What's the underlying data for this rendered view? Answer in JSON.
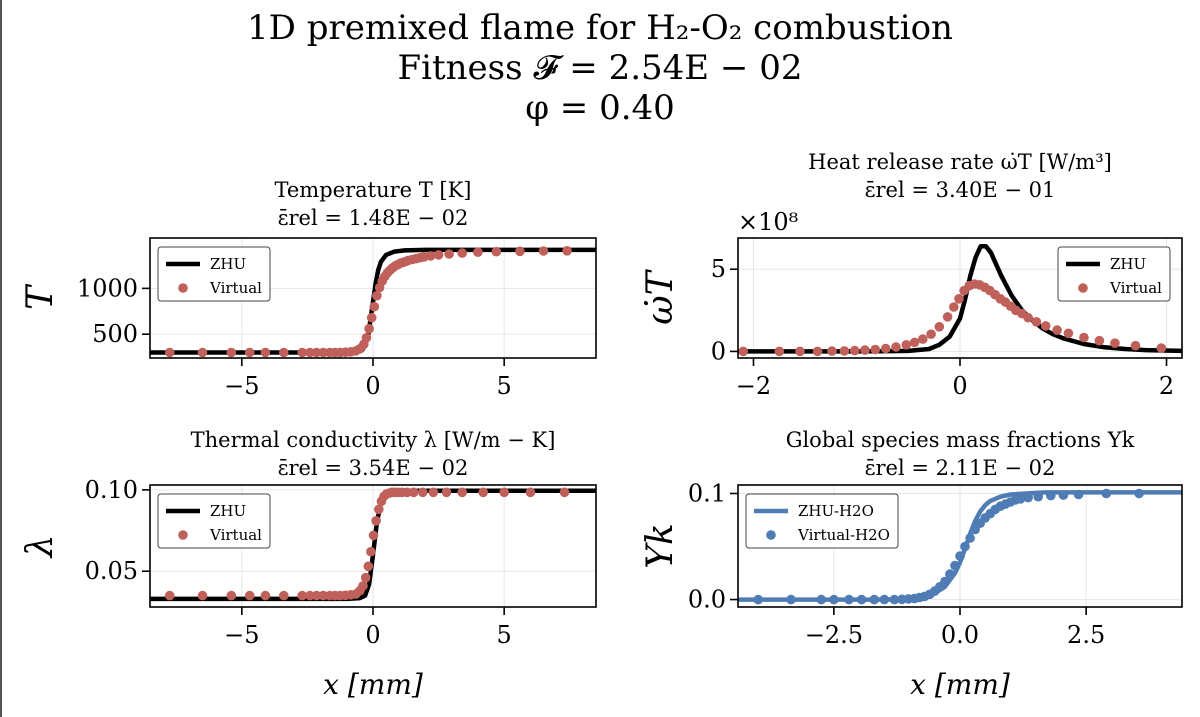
{
  "figure": {
    "suptitle_lines": [
      "1D premixed flame for H₂-O₂ combustion",
      "Fitness 𝓕 = 2.54E − 02",
      "φ = 0.40"
    ]
  },
  "chart_data": [
    {
      "type": "line",
      "title": [
        "Temperature T [K]",
        "ε̄rel = 1.48E − 02"
      ],
      "xlabel": "",
      "ylabel": "T",
      "xlim": [
        -8.5,
        8.5
      ],
      "ylim": [
        240,
        1550
      ],
      "xticks": [
        -5,
        0,
        5
      ],
      "xtick_labels": [
        "−5",
        "0",
        "5"
      ],
      "yticks": [
        500,
        1000
      ],
      "ytick_labels": [
        "500",
        "1000"
      ],
      "grid": true,
      "legend_position": "top-left",
      "series": [
        {
          "name": "ZHU",
          "style": "line",
          "color": "#000000",
          "x": [
            -8.5,
            -1.0,
            -0.6,
            -0.4,
            -0.2,
            0.0,
            0.1,
            0.2,
            0.3,
            0.5,
            0.8,
            1.2,
            2.0,
            4.0,
            8.5
          ],
          "y": [
            300,
            300,
            305,
            330,
            460,
            850,
            1050,
            1200,
            1290,
            1365,
            1400,
            1415,
            1420,
            1420,
            1420
          ]
        },
        {
          "name": "Virtual",
          "style": "markers",
          "color": "#c0605a",
          "x": [
            -7.75,
            -6.5,
            -5.4,
            -4.7,
            -4.1,
            -3.4,
            -2.7,
            -2.4,
            -2.15,
            -1.9,
            -1.65,
            -1.45,
            -1.25,
            -1.05,
            -0.85,
            -0.65,
            -0.5,
            -0.35,
            -0.25,
            -0.15,
            -0.05,
            0.05,
            0.15,
            0.25,
            0.35,
            0.45,
            0.55,
            0.65,
            0.75,
            0.85,
            0.95,
            1.05,
            1.15,
            1.25,
            1.35,
            1.5,
            1.65,
            1.8,
            1.95,
            2.2,
            2.5,
            2.9,
            3.4,
            4.0,
            4.7,
            5.6,
            6.5,
            7.4
          ],
          "y": [
            300,
            300,
            300,
            300,
            300,
            300,
            300,
            300,
            300,
            300,
            300,
            300,
            301,
            303,
            308,
            318,
            340,
            390,
            460,
            560,
            680,
            800,
            920,
            1010,
            1080,
            1130,
            1170,
            1200,
            1225,
            1245,
            1260,
            1275,
            1285,
            1295,
            1305,
            1315,
            1325,
            1335,
            1345,
            1355,
            1365,
            1375,
            1385,
            1395,
            1400,
            1405,
            1408,
            1410
          ]
        }
      ]
    },
    {
      "type": "line",
      "title": [
        "Heat release rate ω̇T [W/m³]",
        "ε̄rel = 3.40E − 01"
      ],
      "xlabel": "",
      "ylabel": "ω̇T",
      "axis_exponent": "×10⁸",
      "xlim": [
        -2.15,
        2.15
      ],
      "ylim": [
        -0.4,
        6.9
      ],
      "xticks": [
        -2,
        0,
        2
      ],
      "xtick_labels": [
        "−2",
        "0",
        "2"
      ],
      "yticks": [
        0,
        5
      ],
      "ytick_labels": [
        "0",
        "5"
      ],
      "grid": true,
      "legend_position": "top-right",
      "series": [
        {
          "name": "ZHU",
          "style": "line",
          "color": "#000000",
          "x": [
            -2.15,
            -1.0,
            -0.5,
            -0.3,
            -0.2,
            -0.1,
            0.0,
            0.05,
            0.1,
            0.15,
            0.2,
            0.25,
            0.3,
            0.35,
            0.4,
            0.5,
            0.6,
            0.7,
            0.8,
            0.9,
            1.0,
            1.2,
            1.4,
            1.6,
            1.8,
            2.15
          ],
          "y": [
            0,
            0,
            0.03,
            0.15,
            0.4,
            0.9,
            2.0,
            3.2,
            4.6,
            5.7,
            6.4,
            6.4,
            6.0,
            5.3,
            4.6,
            3.4,
            2.5,
            1.9,
            1.4,
            1.05,
            0.8,
            0.45,
            0.25,
            0.15,
            0.08,
            0.03
          ]
        },
        {
          "name": "Virtual",
          "style": "markers",
          "color": "#c0605a",
          "x": [
            -2.1,
            -1.75,
            -1.55,
            -1.38,
            -1.24,
            -1.12,
            -1.02,
            -0.92,
            -0.82,
            -0.72,
            -0.62,
            -0.52,
            -0.44,
            -0.36,
            -0.28,
            -0.2,
            -0.12,
            -0.06,
            -0.01,
            0.04,
            0.09,
            0.14,
            0.19,
            0.24,
            0.29,
            0.34,
            0.39,
            0.44,
            0.49,
            0.54,
            0.6,
            0.66,
            0.74,
            0.83,
            0.94,
            1.05,
            1.2,
            1.35,
            1.5,
            1.7,
            1.95
          ],
          "y": [
            0,
            0,
            0,
            0,
            0.02,
            0.03,
            0.05,
            0.08,
            0.12,
            0.18,
            0.27,
            0.4,
            0.55,
            0.75,
            1.05,
            1.5,
            2.1,
            2.7,
            3.2,
            3.7,
            4.0,
            4.1,
            4.05,
            3.9,
            3.7,
            3.45,
            3.2,
            3.0,
            2.75,
            2.5,
            2.3,
            2.05,
            1.8,
            1.55,
            1.3,
            1.1,
            0.85,
            0.65,
            0.5,
            0.35,
            0.2
          ]
        }
      ]
    },
    {
      "type": "line",
      "title": [
        "Thermal conductivity λ [W/m − K]",
        "ε̄rel = 3.54E − 02"
      ],
      "xlabel": "x [mm]",
      "ylabel": "λ",
      "xlim": [
        -8.5,
        8.5
      ],
      "ylim": [
        0.028,
        0.103
      ],
      "xticks": [
        -5,
        0,
        5
      ],
      "xtick_labels": [
        "−5",
        "0",
        "5"
      ],
      "yticks": [
        0.05,
        0.1
      ],
      "ytick_labels": [
        "0.05",
        "0.10"
      ],
      "grid": true,
      "legend_position": "top-left",
      "series": [
        {
          "name": "ZHU",
          "style": "line",
          "color": "#000000",
          "x": [
            -8.5,
            -1.0,
            -0.5,
            -0.3,
            -0.15,
            0.0,
            0.15,
            0.3,
            0.45,
            0.6,
            0.8,
            1.2,
            2.0,
            8.5
          ],
          "y": [
            0.033,
            0.033,
            0.0335,
            0.035,
            0.042,
            0.06,
            0.08,
            0.092,
            0.097,
            0.099,
            0.0995,
            0.0995,
            0.0995,
            0.0995
          ]
        },
        {
          "name": "Virtual",
          "style": "markers",
          "color": "#c0605a",
          "x": [
            -7.75,
            -6.5,
            -5.4,
            -4.7,
            -4.1,
            -3.4,
            -2.7,
            -2.4,
            -2.15,
            -1.9,
            -1.65,
            -1.45,
            -1.25,
            -1.05,
            -0.85,
            -0.65,
            -0.5,
            -0.38,
            -0.28,
            -0.18,
            -0.08,
            0.02,
            0.12,
            0.22,
            0.32,
            0.42,
            0.52,
            0.62,
            0.72,
            0.82,
            0.95,
            1.1,
            1.3,
            1.55,
            1.9,
            2.3,
            2.8,
            3.4,
            4.2,
            5.0,
            6.0,
            7.3
          ],
          "y": [
            0.035,
            0.035,
            0.035,
            0.035,
            0.035,
            0.035,
            0.035,
            0.035,
            0.035,
            0.035,
            0.035,
            0.035,
            0.035,
            0.0352,
            0.0355,
            0.036,
            0.038,
            0.041,
            0.046,
            0.053,
            0.062,
            0.072,
            0.081,
            0.088,
            0.093,
            0.096,
            0.0975,
            0.098,
            0.0985,
            0.0985,
            0.0985,
            0.0985,
            0.0985,
            0.0985,
            0.0985,
            0.0985,
            0.0985,
            0.0985,
            0.0985,
            0.0985,
            0.0985,
            0.0985
          ]
        }
      ]
    },
    {
      "type": "line",
      "title": [
        "Global species mass fractions Yk",
        "ε̄rel = 2.11E − 02"
      ],
      "xlabel": "x [mm]",
      "ylabel": "Yk",
      "xlim": [
        -4.4,
        4.4
      ],
      "ylim": [
        -0.007,
        0.108
      ],
      "xticks": [
        -2.5,
        0,
        2.5
      ],
      "xtick_labels": [
        "−2.5",
        "0.0",
        "2.5"
      ],
      "yticks": [
        0,
        0.1
      ],
      "ytick_labels": [
        "0.0",
        "0.1"
      ],
      "grid": true,
      "legend_position": "top-left",
      "series": [
        {
          "name": "ZHU-H2O",
          "style": "line",
          "color": "#4f7cb4",
          "x": [
            -4.4,
            -1.5,
            -1.0,
            -0.6,
            -0.3,
            -0.1,
            0.0,
            0.1,
            0.2,
            0.3,
            0.4,
            0.5,
            0.6,
            0.8,
            1.0,
            1.3,
            1.7,
            2.5,
            4.4
          ],
          "y": [
            0,
            0,
            0.0005,
            0.003,
            0.012,
            0.025,
            0.035,
            0.048,
            0.062,
            0.074,
            0.083,
            0.089,
            0.093,
            0.097,
            0.099,
            0.1,
            0.101,
            0.101,
            0.101
          ]
        },
        {
          "name": "Virtual-H2O",
          "style": "markers",
          "color": "#4f7cb4",
          "x": [
            -4.0,
            -3.35,
            -2.75,
            -2.5,
            -2.2,
            -1.95,
            -1.7,
            -1.5,
            -1.3,
            -1.15,
            -1.02,
            -0.9,
            -0.8,
            -0.7,
            -0.6,
            -0.5,
            -0.4,
            -0.3,
            -0.2,
            -0.1,
            0.0,
            0.1,
            0.2,
            0.3,
            0.4,
            0.5,
            0.6,
            0.7,
            0.8,
            0.9,
            1.0,
            1.1,
            1.2,
            1.35,
            1.55,
            1.8,
            2.05,
            2.35,
            2.9,
            3.55
          ],
          "y": [
            0,
            0,
            0,
            0,
            0,
            0,
            0,
            0,
            0,
            0.0003,
            0.0006,
            0.001,
            0.002,
            0.003,
            0.005,
            0.008,
            0.012,
            0.017,
            0.024,
            0.032,
            0.041,
            0.05,
            0.058,
            0.066,
            0.072,
            0.077,
            0.081,
            0.085,
            0.088,
            0.09,
            0.092,
            0.094,
            0.095,
            0.096,
            0.097,
            0.098,
            0.0985,
            0.099,
            0.1,
            0.1
          ]
        }
      ]
    }
  ]
}
